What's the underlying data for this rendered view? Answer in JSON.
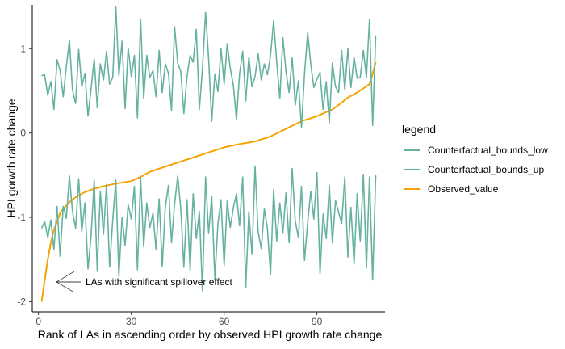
{
  "chart_data": {
    "type": "line",
    "xlabel": "Rank of LAs in ascending order by observed HPI growth rate change",
    "ylabel": "HPI gorwth rate change",
    "xlim": [
      -2,
      112
    ],
    "ylim": [
      -2.12,
      1.52
    ],
    "x_ticks": [
      {
        "value": 0,
        "label": "0"
      },
      {
        "value": 30,
        "label": "30"
      },
      {
        "value": 60,
        "label": "60"
      },
      {
        "value": 90,
        "label": "90"
      }
    ],
    "y_ticks": [
      {
        "value": -2,
        "label": "-2"
      },
      {
        "value": -1,
        "label": "-1"
      },
      {
        "value": 0,
        "label": "0"
      },
      {
        "value": 1,
        "label": "1"
      }
    ],
    "grid": false,
    "legend": {
      "title": "legend",
      "placement": "right",
      "entries": [
        {
          "label": "Counterfactual_bounds_low",
          "color": "#66b2a0"
        },
        {
          "label": "Counterfactual_bounds_up",
          "color": "#66b2a0"
        },
        {
          "label": "Observed_value",
          "color": "#f5a300"
        }
      ]
    },
    "annotation": {
      "text": "LAs with significant spillover effect",
      "arrow_target": [
        1,
        -1.8
      ]
    },
    "series": [
      {
        "name": "Observed_value",
        "color": "#f5a300",
        "points": [
          [
            1,
            -2.0
          ],
          [
            2,
            -1.75
          ],
          [
            3,
            -1.5
          ],
          [
            4,
            -1.3
          ],
          [
            5,
            -1.15
          ],
          [
            6,
            -1.05
          ],
          [
            7,
            -0.95
          ],
          [
            8,
            -0.9
          ],
          [
            10,
            -0.82
          ],
          [
            12,
            -0.76
          ],
          [
            15,
            -0.7
          ],
          [
            18,
            -0.66
          ],
          [
            21,
            -0.63
          ],
          [
            25,
            -0.6
          ],
          [
            30,
            -0.57
          ],
          [
            33,
            -0.52
          ],
          [
            36,
            -0.46
          ],
          [
            40,
            -0.41
          ],
          [
            45,
            -0.35
          ],
          [
            50,
            -0.29
          ],
          [
            55,
            -0.23
          ],
          [
            60,
            -0.17
          ],
          [
            65,
            -0.13
          ],
          [
            70,
            -0.1
          ],
          [
            75,
            -0.04
          ],
          [
            80,
            0.05
          ],
          [
            85,
            0.14
          ],
          [
            90,
            0.2
          ],
          [
            95,
            0.28
          ],
          [
            98,
            0.36
          ],
          [
            100,
            0.42
          ],
          [
            103,
            0.48
          ],
          [
            105,
            0.53
          ],
          [
            107,
            0.58
          ],
          [
            108,
            0.7
          ],
          [
            109,
            0.84
          ]
        ]
      },
      {
        "name": "Counterfactual_bounds_up",
        "color": "#66b2a0",
        "points": [
          [
            1,
            0.68
          ],
          [
            2,
            0.69
          ],
          [
            3,
            0.45
          ],
          [
            4,
            0.61
          ],
          [
            5,
            0.28
          ],
          [
            6,
            0.87
          ],
          [
            7,
            0.74
          ],
          [
            8,
            0.43
          ],
          [
            9,
            0.79
          ],
          [
            10,
            1.1
          ],
          [
            11,
            0.51
          ],
          [
            12,
            0.35
          ],
          [
            13,
            0.99
          ],
          [
            14,
            0.55
          ],
          [
            15,
            0.71
          ],
          [
            16,
            0.2
          ],
          [
            17,
            0.52
          ],
          [
            18,
            0.88
          ],
          [
            19,
            0.3
          ],
          [
            20,
            0.82
          ],
          [
            21,
            0.63
          ],
          [
            22,
            0.97
          ],
          [
            23,
            0.58
          ],
          [
            24,
            0.66
          ],
          [
            25,
            1.5
          ],
          [
            26,
            0.68
          ],
          [
            27,
            1.09
          ],
          [
            28,
            0.29
          ],
          [
            29,
            1.01
          ],
          [
            30,
            0.67
          ],
          [
            31,
            0.92
          ],
          [
            32,
            0.18
          ],
          [
            33,
            1.35
          ],
          [
            34,
            0.41
          ],
          [
            35,
            0.92
          ],
          [
            36,
            0.66
          ],
          [
            37,
            0.74
          ],
          [
            38,
            0.43
          ],
          [
            39,
            0.98
          ],
          [
            40,
            0.48
          ],
          [
            41,
            0.82
          ],
          [
            42,
            0.71
          ],
          [
            43,
            0.27
          ],
          [
            44,
            1.26
          ],
          [
            45,
            0.83
          ],
          [
            46,
            0.73
          ],
          [
            47,
            0.23
          ],
          [
            48,
            0.67
          ],
          [
            49,
            0.92
          ],
          [
            50,
            0.84
          ],
          [
            51,
            1.23
          ],
          [
            52,
            0.28
          ],
          [
            53,
            0.76
          ],
          [
            54,
            1.43
          ],
          [
            55,
            0.88
          ],
          [
            56,
            0.14
          ],
          [
            57,
            0.7
          ],
          [
            58,
            0.49
          ],
          [
            59,
            1.0
          ],
          [
            60,
            0.58
          ],
          [
            61,
            1.06
          ],
          [
            62,
            0.77
          ],
          [
            63,
            0.56
          ],
          [
            64,
            0.16
          ],
          [
            65,
            0.7
          ],
          [
            66,
            0.97
          ],
          [
            67,
            0.38
          ],
          [
            68,
            0.9
          ],
          [
            69,
            0.55
          ],
          [
            70,
            0.67
          ],
          [
            71,
            0.94
          ],
          [
            72,
            0.63
          ],
          [
            73,
            0.82
          ],
          [
            74,
            0.69
          ],
          [
            75,
            0.92
          ],
          [
            76,
            1.33
          ],
          [
            77,
            0.85
          ],
          [
            78,
            0.41
          ],
          [
            79,
            1.13
          ],
          [
            80,
            0.73
          ],
          [
            81,
            0.48
          ],
          [
            82,
            0.89
          ],
          [
            83,
            0.33
          ],
          [
            84,
            0.62
          ],
          [
            85,
            0.07
          ],
          [
            86,
            0.7
          ],
          [
            87,
            1.19
          ],
          [
            88,
            0.82
          ],
          [
            89,
            0.54
          ],
          [
            90,
            0.64
          ],
          [
            91,
            0.72
          ],
          [
            92,
            0.28
          ],
          [
            93,
            0.61
          ],
          [
            94,
            0.12
          ],
          [
            95,
            0.83
          ],
          [
            96,
            0.55
          ],
          [
            97,
            0.48
          ],
          [
            98,
            0.98
          ],
          [
            99,
            0.51
          ],
          [
            100,
            1.0
          ],
          [
            101,
            0.54
          ],
          [
            102,
            0.9
          ],
          [
            103,
            0.65
          ],
          [
            104,
            0.66
          ],
          [
            105,
            0.98
          ],
          [
            106,
            0.66
          ],
          [
            107,
            1.35
          ],
          [
            108,
            0.09
          ],
          [
            109,
            1.16
          ]
        ]
      },
      {
        "name": "Counterfactual_bounds_low",
        "color": "#66b2a0",
        "points": [
          [
            1,
            -1.13
          ],
          [
            2,
            -1.05
          ],
          [
            3,
            -1.24
          ],
          [
            4,
            -1.03
          ],
          [
            5,
            -1.38
          ],
          [
            6,
            -0.87
          ],
          [
            7,
            -1.46
          ],
          [
            8,
            -0.87
          ],
          [
            9,
            -1.01
          ],
          [
            10,
            -0.51
          ],
          [
            11,
            -0.93
          ],
          [
            12,
            -1.13
          ],
          [
            13,
            -0.54
          ],
          [
            14,
            -1.17
          ],
          [
            15,
            -0.83
          ],
          [
            16,
            -1.61
          ],
          [
            17,
            -1.23
          ],
          [
            18,
            -0.56
          ],
          [
            19,
            -1.64
          ],
          [
            20,
            -0.69
          ],
          [
            21,
            -1.2
          ],
          [
            22,
            -0.61
          ],
          [
            23,
            -1.59
          ],
          [
            24,
            -1.03
          ],
          [
            25,
            -0.56
          ],
          [
            26,
            -1.7
          ],
          [
            27,
            -1.0
          ],
          [
            28,
            -1.33
          ],
          [
            29,
            -0.85
          ],
          [
            30,
            -1.02
          ],
          [
            31,
            -0.63
          ],
          [
            32,
            -1.62
          ],
          [
            33,
            -0.52
          ],
          [
            34,
            -1.35
          ],
          [
            35,
            -0.83
          ],
          [
            36,
            -1.12
          ],
          [
            37,
            -0.95
          ],
          [
            38,
            -1.38
          ],
          [
            39,
            -0.78
          ],
          [
            40,
            -1.58
          ],
          [
            41,
            -0.88
          ],
          [
            42,
            -0.62
          ],
          [
            43,
            -1.3
          ],
          [
            44,
            -0.84
          ],
          [
            45,
            -0.51
          ],
          [
            46,
            -0.9
          ],
          [
            47,
            -1.59
          ],
          [
            48,
            -0.79
          ],
          [
            49,
            -1.63
          ],
          [
            50,
            -0.72
          ],
          [
            51,
            -1.25
          ],
          [
            52,
            -0.93
          ],
          [
            53,
            -1.87
          ],
          [
            54,
            -0.52
          ],
          [
            55,
            -1.19
          ],
          [
            56,
            -0.75
          ],
          [
            57,
            -1.73
          ],
          [
            58,
            -1.08
          ],
          [
            59,
            -0.79
          ],
          [
            60,
            -1.57
          ],
          [
            61,
            -0.8
          ],
          [
            62,
            -1.12
          ],
          [
            63,
            -0.88
          ],
          [
            64,
            -0.72
          ],
          [
            65,
            -1.1
          ],
          [
            66,
            -0.52
          ],
          [
            67,
            -1.83
          ],
          [
            68,
            -0.93
          ],
          [
            69,
            -1.44
          ],
          [
            70,
            -0.39
          ],
          [
            71,
            -1.17
          ],
          [
            72,
            -1.37
          ],
          [
            73,
            -0.9
          ],
          [
            74,
            -1.13
          ],
          [
            75,
            -1.68
          ],
          [
            76,
            -0.67
          ],
          [
            77,
            -1.28
          ],
          [
            78,
            -0.83
          ],
          [
            79,
            -1.19
          ],
          [
            80,
            -0.71
          ],
          [
            81,
            -1.3
          ],
          [
            82,
            -0.42
          ],
          [
            83,
            -1.04
          ],
          [
            84,
            -1.24
          ],
          [
            85,
            -0.63
          ],
          [
            86,
            -1.51
          ],
          [
            87,
            -1.06
          ],
          [
            88,
            -0.69
          ],
          [
            89,
            -1.02
          ],
          [
            90,
            -0.47
          ],
          [
            91,
            -1.67
          ],
          [
            92,
            -0.96
          ],
          [
            93,
            -1.25
          ],
          [
            94,
            -0.62
          ],
          [
            95,
            -1.3
          ],
          [
            96,
            -0.8
          ],
          [
            97,
            -0.94
          ],
          [
            98,
            -1.07
          ],
          [
            99,
            -0.52
          ],
          [
            100,
            -1.47
          ],
          [
            101,
            -0.88
          ],
          [
            102,
            -1.55
          ],
          [
            103,
            -0.72
          ],
          [
            104,
            -1.28
          ],
          [
            105,
            -0.49
          ],
          [
            106,
            -1.6
          ],
          [
            107,
            -0.52
          ],
          [
            108,
            -1.74
          ],
          [
            109,
            -0.5
          ]
        ]
      }
    ]
  }
}
